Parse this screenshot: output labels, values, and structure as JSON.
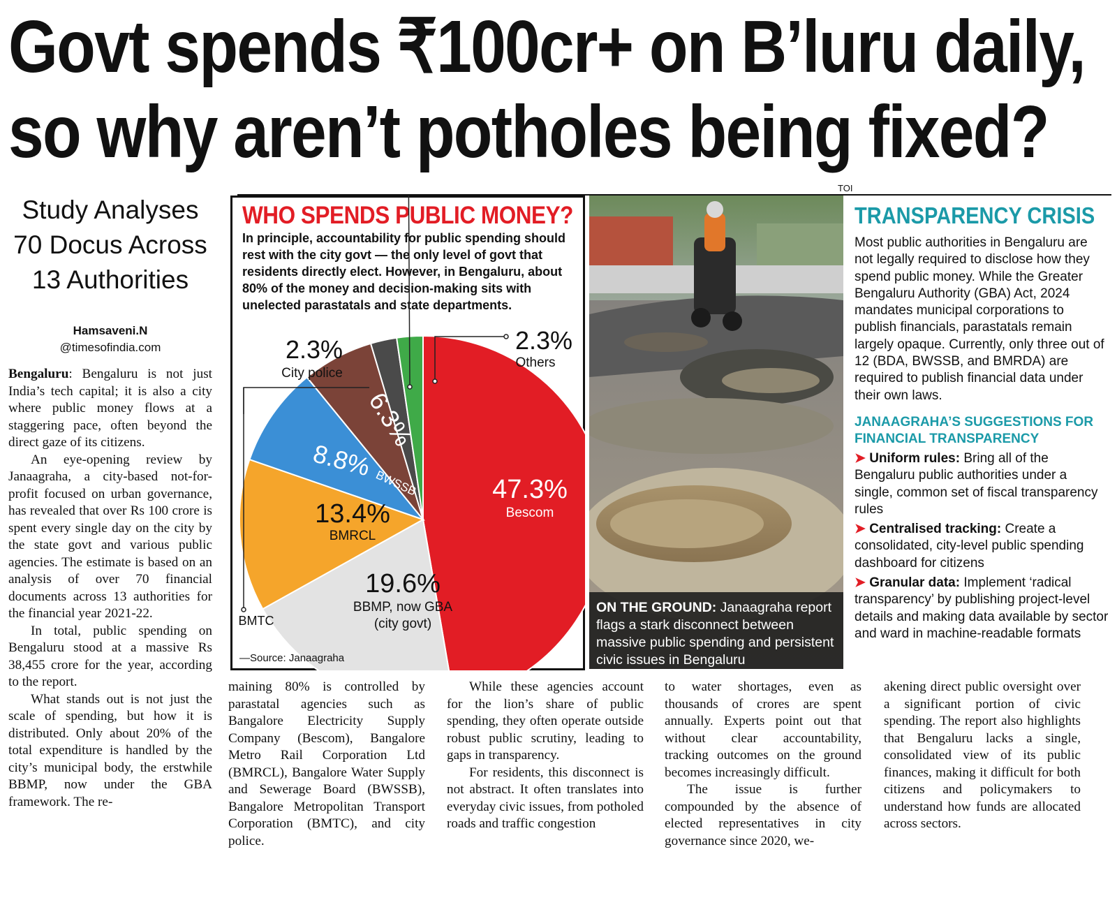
{
  "headline": {
    "line1": "Govt spends ₹100cr+ on B’luru daily,",
    "line2": "so why aren’t potholes being fixed?"
  },
  "photo_credit": "TOI",
  "intro": [
    "Study Analyses",
    "70 Docus Across",
    "13 Authorities"
  ],
  "byline": {
    "author": "Hamsaveni.N",
    "outlet": "@timesofindia.com"
  },
  "article": {
    "dateline": "Bengaluru",
    "p1": ": Bengaluru is not just India’s tech capital; it is also a city where public money flows at a staggering pace, often beyond the direct gaze of its citizens.",
    "p2": "An eye-opening review by Janaagraha, a city-based not-for-profit focused on urban governance, has revealed that over Rs 100 crore is spent every single day on the city by the state govt and various public agencies. The estimate is based on an analysis of over 70 financial documents across 13 authorities for the financial year 2021-22.",
    "p3": "In total, public spending on Bengaluru stood at a massive Rs 38,455 crore for the year, according to the report.",
    "p4": "What stands out is not just the scale of spending, but how it is distributed. Only about 20% of the total expenditure is handled by the city’s municipal body, the erstwhile BBMP, now under the GBA framework. The re-",
    "col2": "maining 80% is controlled by parastatal agencies such as Bangalore Electricity Supply Company (Bescom), Bangalore Metro Rail Corporation Ltd (BMRCL), Bangalore Water Supply and Sewerage Board (BWSSB), Bangalore Metropolitan Transport Corporation (BMTC), and city police.",
    "col3a": "While these agencies account for the lion’s share of public spending, they often operate outside robust public scrutiny, leading to gaps in transparency.",
    "col3b": "For residents, this disconnect is not abstract. It often translates into everyday civic issues, from potholed roads and traffic congestion",
    "col4a": "to water shortages, even as thousands of crores are spent annually. Experts point out that without clear accountability, tracking outcomes on the ground becomes increasingly difficult.",
    "col4b": "The issue is further compounded by the absence of elected representatives in city governance since 2020, we-",
    "col5": "akening direct public oversight over a significant portion of civic spending. The report also highlights that Bengaluru lacks a single, consolidated view of its public finances, making it difficult for both citizens and policymakers to understand how funds are allocated across sectors."
  },
  "infobox": {
    "title": "WHO SPENDS PUBLIC MONEY?",
    "subtitle": "In principle, accountability for public spending should rest with the city govt — the only level of govt that residents directly elect. However, in Bengaluru, about 80% of the money and decision-making sits with unelected parastatals and state departments.",
    "source": "—Source: Janaagraha"
  },
  "chart_data": {
    "type": "pie",
    "title": "WHO SPENDS PUBLIC MONEY?",
    "slices": [
      {
        "label": "Bescom",
        "value": 47.3,
        "display": "47.3%",
        "color": "#e21d25"
      },
      {
        "label": "BBMP, now GBA",
        "sublabel": "(city govt)",
        "value": 19.6,
        "display": "19.6%",
        "color": "#e3e3e3"
      },
      {
        "label": "BMRCL",
        "value": 13.4,
        "display": "13.4%",
        "color": "#f5a52b"
      },
      {
        "label": "BWSSB",
        "value": 8.8,
        "display": "8.8%",
        "color": "#3b8fd6"
      },
      {
        "label": "BMTC",
        "value": 6.3,
        "display": "6.3%",
        "color": "#7b4338"
      },
      {
        "label": "City police",
        "value": 2.3,
        "display": "2.3%",
        "color": "#4a4a4a"
      },
      {
        "label": "Others",
        "value": 2.3,
        "display": "2.3%",
        "color": "#3faa48"
      }
    ]
  },
  "photo_caption": {
    "lead": "ON THE GROUND:",
    "text": " Janaagraha report flags a stark disconnect between massive public spending and persistent civic issues in Bengaluru"
  },
  "sidebar": {
    "title": "TRANSPARENCY CRISIS",
    "text": "Most public authorities in Bengaluru are not legally required to disclose how they spend public money. While the Greater Bengaluru Authority (GBA) Act, 2024 mandates municipal corporations to publish financials, parastatals remain largely opaque. Currently, only three out of 12 (BDA, BWSSB, and BMRDA) are required to publish financial data under their own laws.",
    "subtitle": "JANAAGRAHA’S SUGGESTIONS FOR FINANCIAL TRANSPARENCY",
    "bullets": [
      {
        "head": "Uniform rules:",
        "text": " Bring all of the Bengaluru public authorities under a single, common set of fiscal transparency rules"
      },
      {
        "head": "Centralised tracking:",
        "text": " Create a consolidated, city-level public spending dashboard for citizens"
      },
      {
        "head": "Granular data:",
        "text": " Implement ‘radical transparency’ by publishing project-level details and making data available by sector and ward in machine-readable formats"
      }
    ]
  },
  "colors": {
    "accent_red": "#e21d25",
    "accent_teal": "#1b9aa8"
  }
}
